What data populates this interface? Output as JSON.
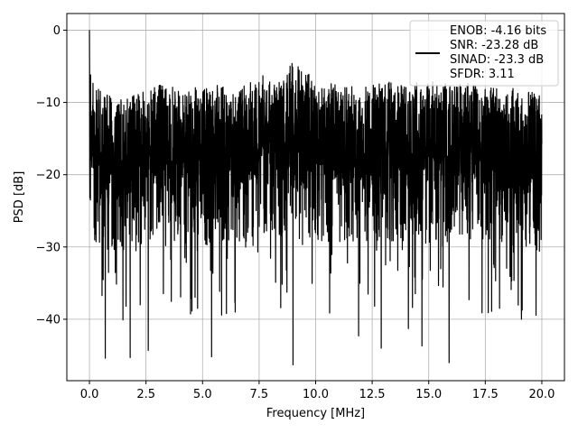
{
  "chart_data": {
    "type": "line",
    "title": "",
    "xlabel": "Frequency [MHz]",
    "ylabel": "PSD [dB]",
    "xlim": [
      -1.0,
      21.0
    ],
    "ylim": [
      -48.5,
      2.3
    ],
    "xticks": [
      0.0,
      2.5,
      5.0,
      7.5,
      10.0,
      12.5,
      15.0,
      17.5,
      20.0
    ],
    "xtick_labels": [
      "0.0",
      "2.5",
      "5.0",
      "7.5",
      "10.0",
      "12.5",
      "15.0",
      "17.5",
      "20.0"
    ],
    "yticks": [
      0,
      -10,
      -20,
      -30,
      -40
    ],
    "ytick_labels": [
      "0",
      "−10",
      "−20",
      "−30",
      "−40"
    ],
    "grid": true,
    "legend": {
      "placement": "top-right",
      "entries": [
        "ENOB: -4.16 bits",
        "SNR: -23.28 dB",
        "SINAD: -23.3 dB",
        "SFDR: 3.11"
      ]
    },
    "series": [
      {
        "color": "#000000",
        "description": "Dense noisy spectrum from 0 to 20 MHz; peak near 0 dB at 0 MHz, envelope roughly -10 dB top, -45 dB bottom, median about -18 dB",
        "x_range": [
          0.0,
          20.0
        ],
        "peak": [
          0.0,
          0.0
        ],
        "upper_envelope": [
          [
            0.05,
            -4.3
          ],
          [
            0.2,
            -7
          ],
          [
            0.5,
            -8
          ],
          [
            1,
            -9
          ],
          [
            2,
            -9
          ],
          [
            3,
            -7.5
          ],
          [
            4,
            -8
          ],
          [
            5,
            -7.8
          ],
          [
            6,
            -7.5
          ],
          [
            7,
            -7.2
          ],
          [
            7.7,
            -6.2
          ],
          [
            8.5,
            -7
          ],
          [
            9,
            -4.0
          ],
          [
            10,
            -7
          ],
          [
            11,
            -7.5
          ],
          [
            12,
            -8
          ],
          [
            13,
            -7
          ],
          [
            14,
            -7.5
          ],
          [
            15,
            -7
          ],
          [
            16,
            -7.5
          ],
          [
            17,
            -7
          ],
          [
            18,
            -7.8
          ],
          [
            19,
            -8
          ],
          [
            20,
            -9
          ]
        ],
        "deep_dips": [
          [
            0.7,
            -45.4
          ],
          [
            1.8,
            -45.3
          ],
          [
            2.6,
            -44.3
          ],
          [
            5.4,
            -45.2
          ],
          [
            9.0,
            -46.3
          ],
          [
            11.9,
            -42.3
          ],
          [
            12.9,
            -44.0
          ],
          [
            14.1,
            -41.3
          ],
          [
            14.7,
            -43.7
          ],
          [
            15.9,
            -46.0
          ],
          [
            19.1,
            -40.0
          ]
        ]
      }
    ]
  }
}
